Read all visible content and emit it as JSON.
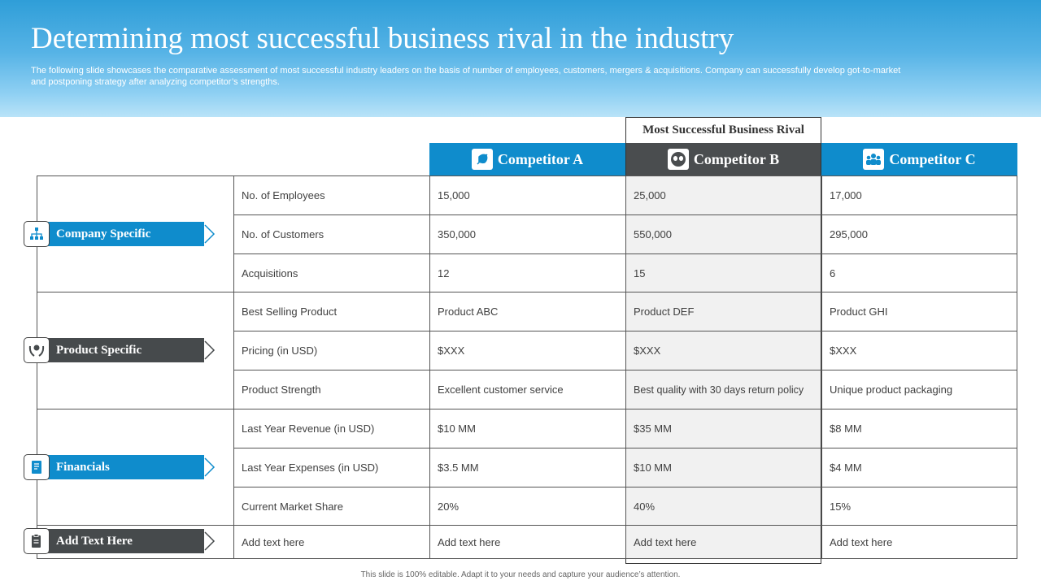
{
  "header": {
    "title": "Determining most successful business rival in the industry",
    "subtitle": "The following slide showcases the comparative assessment of most successful industry leaders on the basis of number of employees, customers, mergers & acquisitions. Company can successfully develop got-to-market and postponing strategy after analyzing competitor’s strengths."
  },
  "rival_label": "Most Successful Business Rival",
  "competitors": [
    {
      "name": "Competitor A",
      "icon": "leaf-icon",
      "color": "#0f8ccc"
    },
    {
      "name": "Competitor B",
      "icon": "mask-icon",
      "color": "#4a4d4f"
    },
    {
      "name": "Competitor C",
      "icon": "team-icon",
      "color": "#0f8ccc"
    }
  ],
  "groups": [
    {
      "label": "Company  Specific",
      "icon": "org-chart-icon",
      "color": "#0f8ccc"
    },
    {
      "label": "Product  Specific",
      "icon": "product-hands-icon",
      "color": "#464a4c"
    },
    {
      "label": "Financials",
      "icon": "financial-doc-icon",
      "color": "#0f8ccc"
    },
    {
      "label": "Add Text Here",
      "icon": "clipboard-icon",
      "color": "#464a4c"
    }
  ],
  "rows": [
    {
      "label": "No. of Employees",
      "a": "15,000",
      "b": "25,000",
      "c": "17,000"
    },
    {
      "label": "No. of Customers",
      "a": "350,000",
      "b": "550,000",
      "c": "295,000"
    },
    {
      "label": "Acquisitions",
      "a": "12",
      "b": "15",
      "c": "6"
    },
    {
      "label": "Best Selling Product",
      "a": "Product ABC",
      "b": "Product DEF",
      "c": "Product GHI"
    },
    {
      "label": "Pricing (in USD)",
      "a": "$XXX",
      "b": "$XXX",
      "c": "$XXX"
    },
    {
      "label": "Product Strength",
      "a": "Excellent customer service",
      "b": "Best quality with 30 days return policy",
      "c": "Unique  product packaging"
    },
    {
      "label": "Last Year Revenue  (in USD)",
      "a": "$10 MM",
      "b": "$35 MM",
      "c": "$8 MM"
    },
    {
      "label": "Last Year Expenses (in USD)",
      "a": "$3.5 MM",
      "b": "$10 MM",
      "c": "$4 MM"
    },
    {
      "label": "Current  Market Share",
      "a": "20%",
      "b": "40%",
      "c": "15%"
    },
    {
      "label": "Add text here",
      "a": "Add text here",
      "b": "Add text here",
      "c": "Add text here"
    }
  ],
  "footer": "This slide is 100% editable. Adapt it to your needs and capture your audience’s attention."
}
